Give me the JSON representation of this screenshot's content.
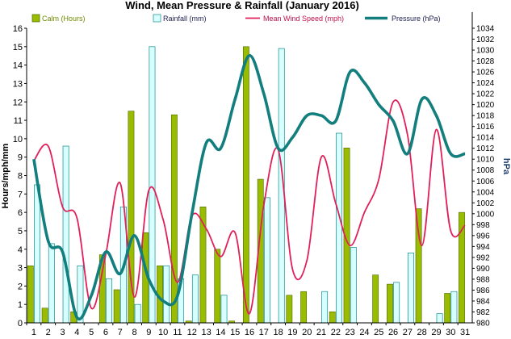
{
  "chart_data": {
    "type": "bar",
    "title": "Wind, Mean Pressure & Rainfall (January 2016)",
    "ylabel_left": "Hours/mph/mm",
    "ylabel_right": "hPa",
    "ylim_left": [
      0,
      16
    ],
    "yticks_left": [
      "0",
      "1",
      "2",
      "3",
      "4",
      "5",
      "6",
      "7",
      "8",
      "9",
      "10",
      "11",
      "12",
      "13",
      "14",
      "15",
      "16"
    ],
    "ylim_right": [
      980,
      1034
    ],
    "yticks_right": [
      "980",
      "982",
      "984",
      "986",
      "988",
      "990",
      "992",
      "994",
      "996",
      "998",
      "1000",
      "1002",
      "1004",
      "1006",
      "1008",
      "1010",
      "1012",
      "1014",
      "1016",
      "1018",
      "1020",
      "1022",
      "1024",
      "1026",
      "1028",
      "1030",
      "1032",
      "1034"
    ],
    "categories": [
      "1",
      "2",
      "3",
      "4",
      "5",
      "6",
      "7",
      "8",
      "9",
      "10",
      "11",
      "12",
      "13",
      "14",
      "15",
      "16",
      "17",
      "18",
      "19",
      "20",
      "21",
      "22",
      "23",
      "24",
      "25",
      "26",
      "27",
      "28",
      "29",
      "30",
      "31"
    ],
    "grid": false,
    "legend_placement": "top",
    "series": [
      {
        "name": "Calm (Hours)",
        "kind": "bar",
        "axis": "left",
        "color": "#99bb00",
        "values": [
          3.1,
          0.8,
          0,
          0.6,
          0,
          3.7,
          1.8,
          11.5,
          4.9,
          3.1,
          11.3,
          0.1,
          6.3,
          4.0,
          0.1,
          15.0,
          7.8,
          0,
          1.5,
          1.7,
          0,
          0.6,
          9.5,
          0,
          2.6,
          2.1,
          0,
          6.2,
          0,
          1.6,
          6.0
        ]
      },
      {
        "name": "Rainfall (mm)",
        "kind": "bar",
        "axis": "left",
        "color": "#d8ffff",
        "values": [
          7.5,
          4.3,
          9.6,
          3.1,
          0,
          2.4,
          6.3,
          1.0,
          15.0,
          3.1,
          2.4,
          2.6,
          0,
          1.5,
          0,
          0,
          6.8,
          14.9,
          0,
          0,
          1.7,
          10.3,
          4.1,
          0,
          0,
          2.2,
          3.8,
          0,
          0.5,
          1.7,
          0
        ]
      },
      {
        "name": "Mean Wind Speed (mph)",
        "kind": "line",
        "axis": "left",
        "color": "#e0205a",
        "values": [
          8.8,
          9.6,
          6.3,
          5.7,
          0.8,
          3.7,
          7.6,
          1.4,
          7.2,
          5.6,
          2.2,
          5.8,
          5.1,
          3.6,
          4.9,
          0.5,
          6.4,
          9.4,
          2.9,
          3.4,
          9.0,
          6.5,
          4.2,
          6.0,
          7.8,
          12.0,
          10.2,
          4.2,
          10.5,
          5.0,
          5.3
        ]
      },
      {
        "name": "Pressure (hPa)",
        "kind": "line",
        "axis": "right",
        "color": "#137e7e",
        "values": [
          1010,
          995,
          993,
          981,
          985,
          993,
          989,
          996,
          988,
          984,
          985,
          1000,
          1013,
          1012,
          1021,
          1029,
          1022,
          1012,
          1014,
          1018,
          1018,
          1017,
          1026,
          1024,
          1020,
          1017,
          1011,
          1021,
          1018,
          1011,
          1011
        ]
      }
    ]
  }
}
